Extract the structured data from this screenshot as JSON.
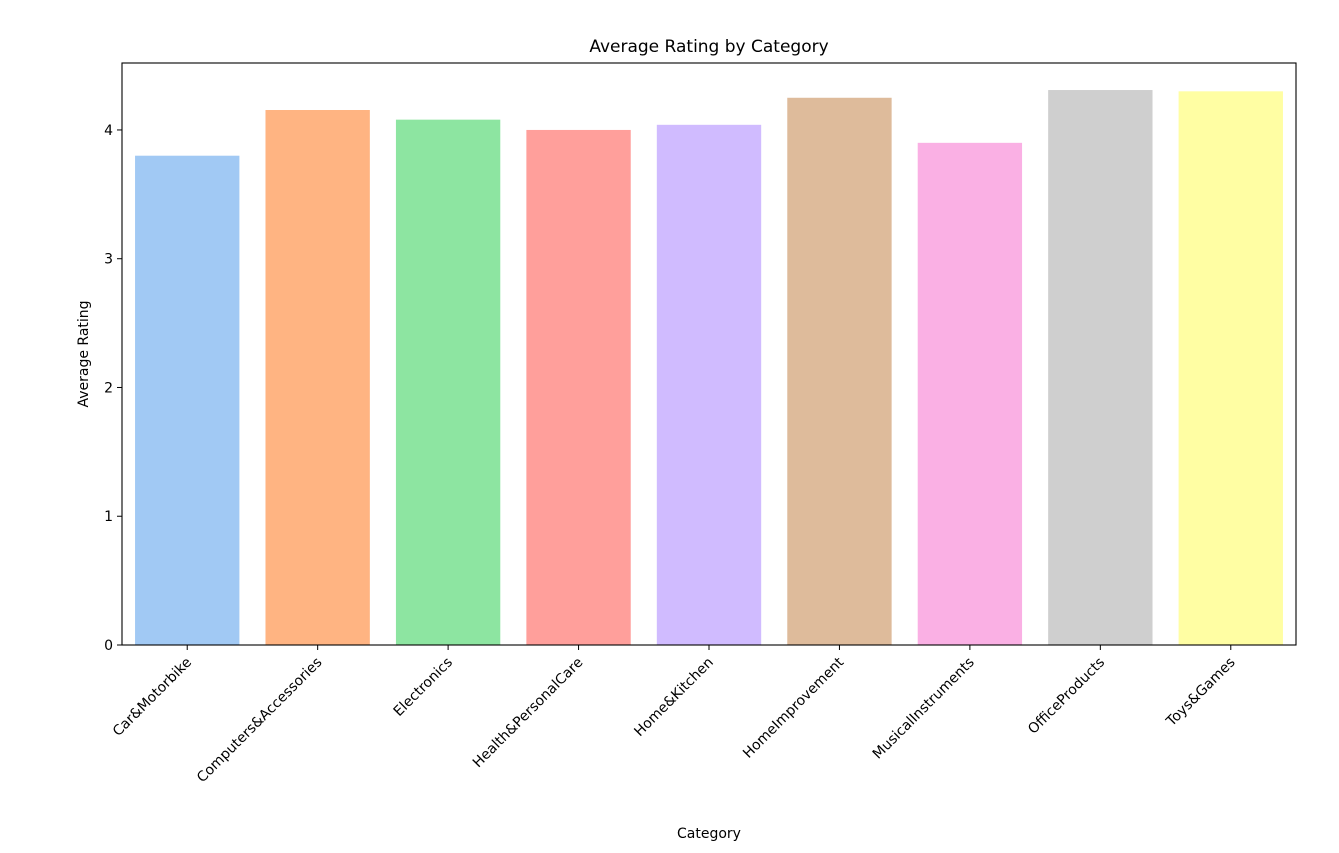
{
  "chart_data": {
    "type": "bar",
    "title": "Average Rating by Category",
    "xlabel": "Category",
    "ylabel": "Average Rating",
    "categories": [
      "Car&Motorbike",
      "Computers&Accessories",
      "Electronics",
      "Health&PersonalCare",
      "Home&Kitchen",
      "HomeImprovement",
      "MusicalInstruments",
      "OfficeProducts",
      "Toys&Games"
    ],
    "values": [
      3.8,
      4.155,
      4.08,
      4.0,
      4.04,
      4.25,
      3.9,
      4.31,
      4.3
    ],
    "colors": [
      "#a1c9f4",
      "#ffb482",
      "#8de5a1",
      "#ff9f9b",
      "#d0bbff",
      "#debb9b",
      "#fab0e4",
      "#cfcfcf",
      "#fffea3"
    ],
    "ylim": [
      0,
      4.52
    ],
    "yticks": [
      0,
      1,
      2,
      3,
      4
    ],
    "grid": false,
    "legend": "none"
  }
}
